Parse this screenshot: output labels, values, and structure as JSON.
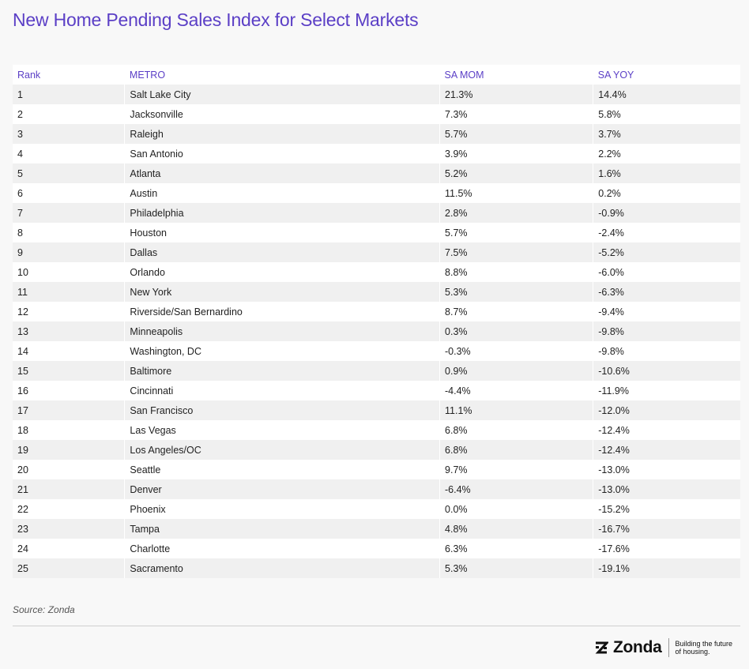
{
  "title": "New Home Pending Sales Index for Select Markets",
  "table": {
    "headers": [
      "Rank",
      "METRO",
      "SA MOM",
      "SA YOY"
    ],
    "rows": [
      [
        "1",
        "Salt Lake City",
        "21.3%",
        "14.4%"
      ],
      [
        "2",
        "Jacksonville",
        "7.3%",
        "5.8%"
      ],
      [
        "3",
        "Raleigh",
        "5.7%",
        "3.7%"
      ],
      [
        "4",
        "San Antonio",
        "3.9%",
        "2.2%"
      ],
      [
        "5",
        "Atlanta",
        "5.2%",
        "1.6%"
      ],
      [
        "6",
        "Austin",
        "11.5%",
        "0.2%"
      ],
      [
        "7",
        "Philadelphia",
        "2.8%",
        "-0.9%"
      ],
      [
        "8",
        "Houston",
        "5.7%",
        "-2.4%"
      ],
      [
        "9",
        "Dallas",
        "7.5%",
        "-5.2%"
      ],
      [
        "10",
        "Orlando",
        "8.8%",
        "-6.0%"
      ],
      [
        "11",
        "New York",
        "5.3%",
        "-6.3%"
      ],
      [
        "12",
        "Riverside/San Bernardino",
        "8.7%",
        "-9.4%"
      ],
      [
        "13",
        "Minneapolis",
        "0.3%",
        "-9.8%"
      ],
      [
        "14",
        "Washington, DC",
        "-0.3%",
        "-9.8%"
      ],
      [
        "15",
        "Baltimore",
        "0.9%",
        "-10.6%"
      ],
      [
        "16",
        "Cincinnati",
        "-4.4%",
        "-11.9%"
      ],
      [
        "17",
        "San Francisco",
        "11.1%",
        "-12.0%"
      ],
      [
        "18",
        "Las Vegas",
        "6.8%",
        "-12.4%"
      ],
      [
        "19",
        "Los Angeles/OC",
        "6.8%",
        "-12.4%"
      ],
      [
        "20",
        "Seattle",
        "9.7%",
        "-13.0%"
      ],
      [
        "21",
        "Denver",
        "-6.4%",
        "-13.0%"
      ],
      [
        "22",
        "Phoenix",
        "0.0%",
        "-15.2%"
      ],
      [
        "23",
        "Tampa",
        "4.8%",
        "-16.7%"
      ],
      [
        "24",
        "Charlotte",
        "6.3%",
        "-17.6%"
      ],
      [
        "25",
        "Sacramento",
        "5.3%",
        "-19.1%"
      ]
    ]
  },
  "source": "Source: Zonda",
  "logo": {
    "name": "Zonda",
    "tagline_line1": "Building the future",
    "tagline_line2": "of housing.",
    "icon": "zonda-z-mark-icon"
  },
  "colors": {
    "accent": "#5b3fc6",
    "row_alt": "#f0f0f0",
    "background": "#f8f8f8"
  }
}
